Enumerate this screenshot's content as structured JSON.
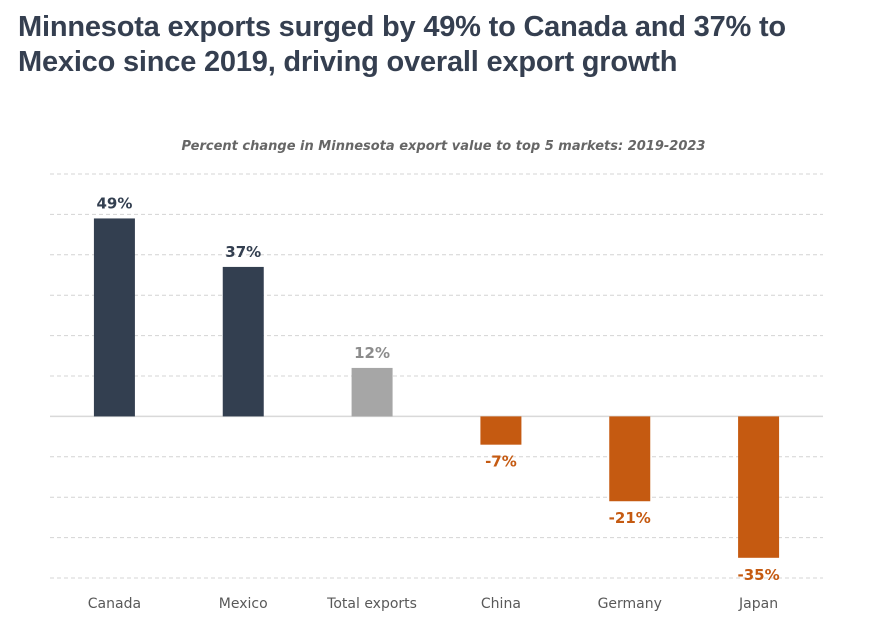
{
  "headline": "Minnesota exports surged by 49% to Canada and 37% to Mexico since 2019, driving overall export growth",
  "chart_data": {
    "type": "bar",
    "title": "Percent change in Minnesota export value to top 5 markets: 2019-2023",
    "xlabel": "",
    "ylabel": "",
    "categories": [
      "Canada",
      "Mexico",
      "Total exports",
      "China",
      "Germany",
      "Japan"
    ],
    "values": [
      49,
      37,
      12,
      -7,
      -21,
      -35
    ],
    "data_labels": [
      "49%",
      "37%",
      "12%",
      "-7%",
      "-21%",
      "-35%"
    ],
    "ylim": [
      -40,
      60
    ],
    "grid": true,
    "grid_step": 10,
    "legend": "none",
    "colors": {
      "positive": "#333f50",
      "total": "#a6a6a6",
      "negative": "#c55a11",
      "total_label": "#8c8c8c"
    }
  }
}
